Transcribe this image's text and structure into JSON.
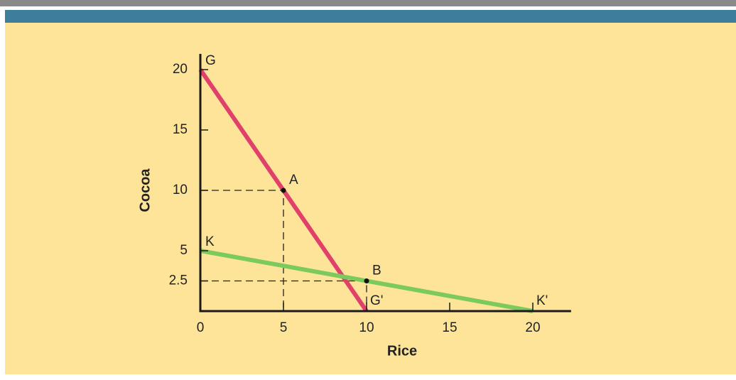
{
  "chart_data": {
    "type": "line",
    "x_label": "Rice",
    "y_label": "Cocoa",
    "xlim": [
      0,
      22.3
    ],
    "ylim": [
      0,
      21.3
    ],
    "xticks": [
      0,
      5,
      10,
      15,
      20
    ],
    "yticks": [
      2.5,
      5,
      10,
      15,
      20
    ],
    "series": [
      {
        "start_label": "G",
        "end_label": "G'",
        "color": "#e0406a",
        "x": [
          0,
          10
        ],
        "values": [
          20,
          0
        ]
      },
      {
        "start_label": "K",
        "end_label": "K'",
        "color": "#7cc95e",
        "x": [
          0,
          20
        ],
        "values": [
          5,
          0
        ]
      }
    ],
    "points": [
      {
        "label": "A",
        "x": 5,
        "y": 10
      },
      {
        "label": "B",
        "x": 10,
        "y": 2.5
      }
    ]
  }
}
